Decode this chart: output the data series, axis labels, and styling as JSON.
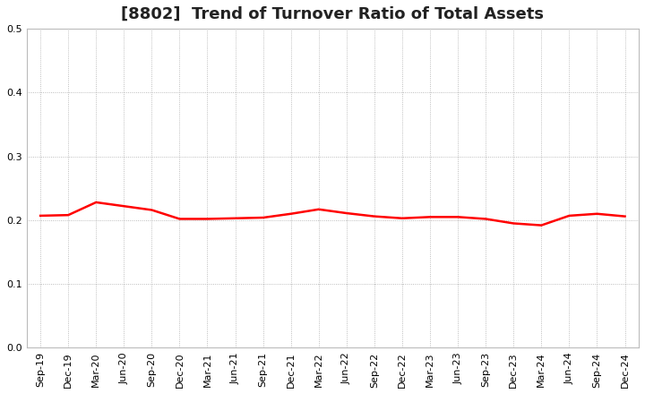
{
  "title": "[8802]  Trend of Turnover Ratio of Total Assets",
  "x_labels": [
    "Sep-19",
    "Dec-19",
    "Mar-20",
    "Jun-20",
    "Sep-20",
    "Dec-20",
    "Mar-21",
    "Jun-21",
    "Sep-21",
    "Dec-21",
    "Mar-22",
    "Jun-22",
    "Sep-22",
    "Dec-22",
    "Mar-23",
    "Jun-23",
    "Sep-23",
    "Dec-23",
    "Mar-24",
    "Jun-24",
    "Sep-24",
    "Dec-24"
  ],
  "y_values": [
    0.207,
    0.208,
    0.228,
    0.222,
    0.216,
    0.202,
    0.202,
    0.203,
    0.204,
    0.21,
    0.217,
    0.211,
    0.206,
    0.203,
    0.205,
    0.205,
    0.202,
    0.195,
    0.192,
    0.207,
    0.21,
    0.206
  ],
  "line_color": "#FF0000",
  "line_width": 1.8,
  "ylim": [
    0.0,
    0.5
  ],
  "yticks": [
    0.0,
    0.1,
    0.2,
    0.3,
    0.4,
    0.5
  ],
  "ytick_labels": [
    "0.0",
    "0.1",
    "0.2",
    "0.3",
    "0.4",
    "0.5"
  ],
  "grid_color": "#aaaaaa",
  "grid_style": "dotted",
  "bg_color": "#ffffff",
  "title_fontsize": 13,
  "tick_fontsize": 8.0,
  "title_color": "#222222",
  "title_fontweight": "bold"
}
